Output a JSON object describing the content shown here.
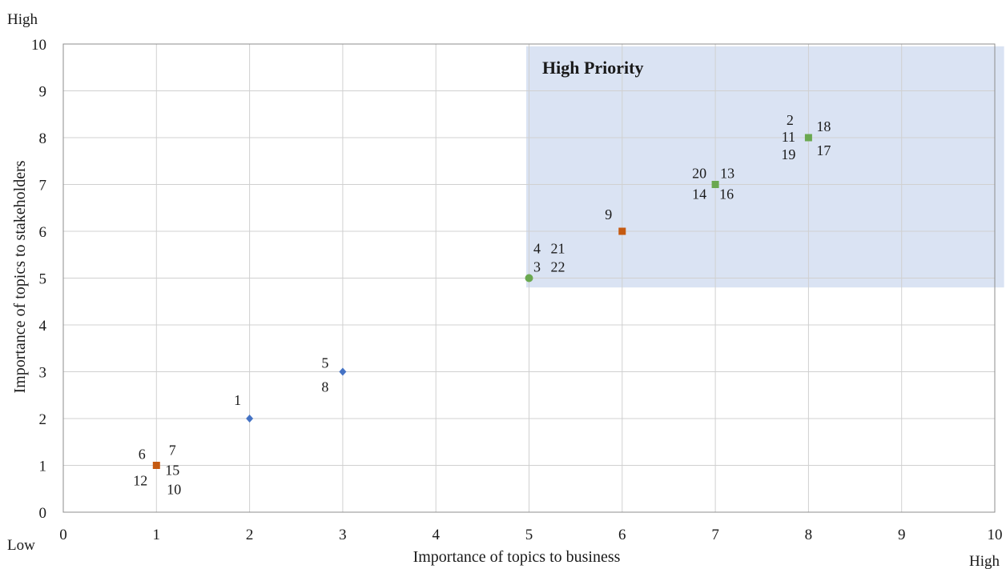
{
  "chart_data": {
    "type": "scatter",
    "xlabel": "Importance of topics to business",
    "ylabel": "Importance of topics to stakeholders",
    "xlim": [
      0,
      10
    ],
    "ylim": [
      0,
      10
    ],
    "x_ticks": [
      "0",
      "1",
      "2",
      "3",
      "4",
      "5",
      "6",
      "7",
      "8",
      "9",
      "10"
    ],
    "y_ticks": [
      "0",
      "1",
      "2",
      "3",
      "4",
      "5",
      "6",
      "7",
      "8",
      "9",
      "10"
    ],
    "grid": true,
    "corner_labels": {
      "y_high": "High",
      "x_low": "Low",
      "x_high": "High"
    },
    "region": {
      "label": "High Priority",
      "x_range": [
        4.97,
        10.1
      ],
      "y_range": [
        4.8,
        9.95
      ],
      "color": "#dae3f3"
    },
    "points": [
      {
        "x": 1,
        "y": 1,
        "marker": "square",
        "color": "#c55a11",
        "labels": [
          {
            "text": "6",
            "pos": "upper-left"
          },
          {
            "text": "7",
            "pos": "upper-right"
          },
          {
            "text": "15",
            "pos": "right"
          },
          {
            "text": "12",
            "pos": "lower-left"
          },
          {
            "text": "10",
            "pos": "lower-right"
          }
        ]
      },
      {
        "x": 2,
        "y": 2,
        "marker": "diamond",
        "color": "#4472c4",
        "labels": [
          {
            "text": "1",
            "pos": "upper-left"
          }
        ]
      },
      {
        "x": 3,
        "y": 3,
        "marker": "diamond",
        "color": "#4472c4",
        "labels": [
          {
            "text": "5",
            "pos": "upper-left"
          },
          {
            "text": "8",
            "pos": "lower-left"
          }
        ]
      },
      {
        "x": 5,
        "y": 5,
        "marker": "circle",
        "color": "#6aa84f",
        "labels": [
          {
            "text": "4",
            "pos": "up-1"
          },
          {
            "text": "21",
            "pos": "up-2"
          },
          {
            "text": "3",
            "pos": "mid-1"
          },
          {
            "text": "22",
            "pos": "mid-2"
          }
        ]
      },
      {
        "x": 6,
        "y": 6,
        "marker": "square",
        "color": "#c55a11",
        "labels": [
          {
            "text": "9",
            "pos": "upper-left"
          }
        ]
      },
      {
        "x": 7,
        "y": 7,
        "marker": "square",
        "color": "#6aa84f",
        "labels": [
          {
            "text": "20",
            "pos": "upper-left"
          },
          {
            "text": "13",
            "pos": "upper-right"
          },
          {
            "text": "14",
            "pos": "lower-left"
          },
          {
            "text": "16",
            "pos": "lower-right"
          }
        ]
      },
      {
        "x": 8,
        "y": 8,
        "marker": "square",
        "color": "#6aa84f",
        "labels": [
          {
            "text": "2",
            "pos": "top-left"
          },
          {
            "text": "18",
            "pos": "upper-right"
          },
          {
            "text": "11",
            "pos": "left"
          },
          {
            "text": "17",
            "pos": "lower-right"
          },
          {
            "text": "19",
            "pos": "lower-left"
          }
        ]
      }
    ]
  }
}
